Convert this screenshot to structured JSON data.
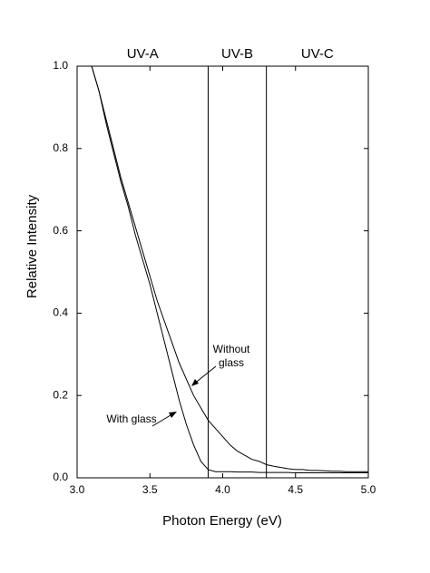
{
  "chart_data": {
    "type": "line",
    "x": [
      3.1,
      3.15,
      3.2,
      3.25,
      3.3,
      3.35,
      3.4,
      3.45,
      3.5,
      3.55,
      3.6,
      3.65,
      3.7,
      3.75,
      3.8,
      3.85,
      3.9,
      3.95,
      4.0,
      4.05,
      4.1,
      4.15,
      4.2,
      4.25,
      4.3,
      4.35,
      4.4,
      4.45,
      4.5,
      4.55,
      4.6,
      4.65,
      4.7,
      4.75,
      4.8,
      4.85,
      4.9,
      4.95,
      5.0
    ],
    "series": [
      {
        "name": "Without glass",
        "color": "#000000",
        "values": [
          1.0,
          0.94,
          0.87,
          0.8,
          0.73,
          0.67,
          0.61,
          0.55,
          0.49,
          0.43,
          0.38,
          0.33,
          0.28,
          0.24,
          0.2,
          0.17,
          0.14,
          0.12,
          0.1,
          0.08,
          0.065,
          0.055,
          0.045,
          0.04,
          0.032,
          0.028,
          0.025,
          0.022,
          0.02,
          0.02,
          0.018,
          0.018,
          0.017,
          0.016,
          0.016,
          0.015,
          0.015,
          0.015,
          0.015
        ]
      },
      {
        "name": "With glass",
        "color": "#000000",
        "values": [
          1.0,
          0.94,
          0.86,
          0.79,
          0.72,
          0.66,
          0.59,
          0.53,
          0.47,
          0.4,
          0.33,
          0.26,
          0.19,
          0.13,
          0.08,
          0.04,
          0.02,
          0.015,
          0.015,
          0.015,
          0.014,
          0.014,
          0.014,
          0.013,
          0.013,
          0.013,
          0.013,
          0.013,
          0.012,
          0.012,
          0.012,
          0.012,
          0.012,
          0.012,
          0.012,
          0.012,
          0.012,
          0.012,
          0.012
        ]
      }
    ],
    "x_label": "Photon Energy (eV)",
    "y_label": "Relative Intensity",
    "xlim": [
      3.0,
      5.0
    ],
    "ylim": [
      0.0,
      1.0
    ],
    "xticks": [
      {
        "value": 3.0,
        "label": "3.0"
      },
      3.5,
      {
        "value": 4.0,
        "label": "4.0"
      },
      4.5,
      {
        "value": 5.0,
        "label": "5.0"
      }
    ],
    "yticks": [
      {
        "value": 0.0,
        "label": "0.0"
      },
      0.2,
      0.4,
      0.6,
      0.8,
      {
        "value": 1.0,
        "label": "1.0"
      }
    ],
    "vlines": [
      3.9,
      4.3
    ],
    "regions": [
      "UV-A",
      "UV-B",
      "UV-C"
    ]
  }
}
